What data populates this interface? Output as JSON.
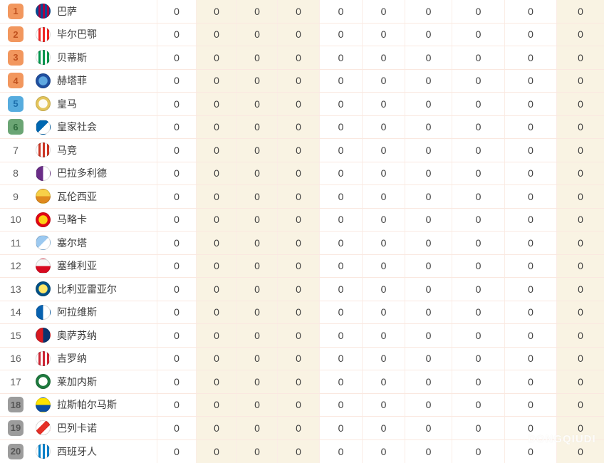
{
  "badge_styles": {
    "orange": {
      "bg": "#f2975e",
      "fg": "#c0511e"
    },
    "blue": {
      "bg": "#57acde",
      "fg": "#1d6fac"
    },
    "green": {
      "bg": "#6ba574",
      "fg": "#2f6c3d"
    },
    "gray": {
      "bg": "#9c9c9c",
      "fg": "#565656"
    },
    "plain": {
      "bg": "",
      "fg": "#5e5e5e"
    }
  },
  "colors": {
    "row_divider": "#fae8e0",
    "col_divider": "#fbede6",
    "beige_band": "#f9f3e3"
  },
  "beige_stat_columns": [
    1,
    2,
    3,
    9
  ],
  "watermark_text": "DONGQIUDI",
  "table": {
    "rows": [
      {
        "rank": "1",
        "badge": "orange",
        "team": "巴萨",
        "crest": {
          "type": "stripes",
          "colors": [
            "#004D98",
            "#A50044"
          ]
        },
        "stats": [
          "0",
          "0",
          "0",
          "0",
          "0",
          "0",
          "0",
          "0",
          "0",
          "0"
        ]
      },
      {
        "rank": "2",
        "badge": "orange",
        "team": "毕尔巴鄂",
        "crest": {
          "type": "stripes",
          "colors": [
            "#FFFFFF",
            "#EE2523"
          ]
        },
        "stats": [
          "0",
          "0",
          "0",
          "0",
          "0",
          "0",
          "0",
          "0",
          "0",
          "0"
        ]
      },
      {
        "rank": "3",
        "badge": "orange",
        "team": "贝蒂斯",
        "crest": {
          "type": "stripes",
          "colors": [
            "#FFFFFF",
            "#00954C"
          ]
        },
        "stats": [
          "0",
          "0",
          "0",
          "0",
          "0",
          "0",
          "0",
          "0",
          "0",
          "0"
        ]
      },
      {
        "rank": "4",
        "badge": "orange",
        "team": "赫塔菲",
        "crest": {
          "type": "ring",
          "colors": [
            "#1F4FA0",
            "#5FA8E0"
          ]
        },
        "stats": [
          "0",
          "0",
          "0",
          "0",
          "0",
          "0",
          "0",
          "0",
          "0",
          "0"
        ]
      },
      {
        "rank": "5",
        "badge": "blue",
        "team": "皇马",
        "crest": {
          "type": "ring",
          "colors": [
            "#E4C55A",
            "#FDFBF3"
          ]
        },
        "stats": [
          "0",
          "0",
          "0",
          "0",
          "0",
          "0",
          "0",
          "0",
          "0",
          "0"
        ]
      },
      {
        "rank": "6",
        "badge": "green",
        "team": "皇家社会",
        "crest": {
          "type": "diag",
          "colors": [
            "#0067B1",
            "#FFFFFF"
          ]
        },
        "stats": [
          "0",
          "0",
          "0",
          "0",
          "0",
          "0",
          "0",
          "0",
          "0",
          "0"
        ]
      },
      {
        "rank": "7",
        "badge": "plain",
        "team": "马竞",
        "crest": {
          "type": "stripes",
          "colors": [
            "#FFFFFF",
            "#CB3524"
          ]
        },
        "stats": [
          "0",
          "0",
          "0",
          "0",
          "0",
          "0",
          "0",
          "0",
          "0",
          "0"
        ]
      },
      {
        "rank": "8",
        "badge": "plain",
        "team": "巴拉多利德",
        "crest": {
          "type": "halfv",
          "colors": [
            "#6A2D87",
            "#FFFFFF"
          ]
        },
        "stats": [
          "0",
          "0",
          "0",
          "0",
          "0",
          "0",
          "0",
          "0",
          "0",
          "0"
        ]
      },
      {
        "rank": "9",
        "badge": "plain",
        "team": "瓦伦西亚",
        "crest": {
          "type": "halfh",
          "colors": [
            "#F7D048",
            "#E08A1E"
          ]
        },
        "stats": [
          "0",
          "0",
          "0",
          "0",
          "0",
          "0",
          "0",
          "0",
          "0",
          "0"
        ]
      },
      {
        "rank": "10",
        "badge": "plain",
        "team": "马略卡",
        "crest": {
          "type": "ring",
          "colors": [
            "#E20613",
            "#FCD116"
          ]
        },
        "stats": [
          "0",
          "0",
          "0",
          "0",
          "0",
          "0",
          "0",
          "0",
          "0",
          "0"
        ]
      },
      {
        "rank": "11",
        "badge": "plain",
        "team": "塞尔塔",
        "crest": {
          "type": "diag",
          "colors": [
            "#9CC9F0",
            "#FFFFFF"
          ]
        },
        "stats": [
          "0",
          "0",
          "0",
          "0",
          "0",
          "0",
          "0",
          "0",
          "0",
          "0"
        ]
      },
      {
        "rank": "12",
        "badge": "plain",
        "team": "塞维利亚",
        "crest": {
          "type": "halfh",
          "colors": [
            "#F6F6F6",
            "#D8091F"
          ]
        },
        "stats": [
          "0",
          "0",
          "0",
          "0",
          "0",
          "0",
          "0",
          "0",
          "0",
          "0"
        ]
      },
      {
        "rank": "13",
        "badge": "plain",
        "team": "比利亚雷亚尔",
        "crest": {
          "type": "ring",
          "colors": [
            "#005187",
            "#FFE667"
          ]
        },
        "stats": [
          "0",
          "0",
          "0",
          "0",
          "0",
          "0",
          "0",
          "0",
          "0",
          "0"
        ]
      },
      {
        "rank": "14",
        "badge": "plain",
        "team": "阿拉维斯",
        "crest": {
          "type": "halfv",
          "colors": [
            "#0761AF",
            "#FFFFFF"
          ]
        },
        "stats": [
          "0",
          "0",
          "0",
          "0",
          "0",
          "0",
          "0",
          "0",
          "0",
          "0"
        ]
      },
      {
        "rank": "15",
        "badge": "plain",
        "team": "奥萨苏纳",
        "crest": {
          "type": "halfv",
          "colors": [
            "#D91A21",
            "#0A346F"
          ]
        },
        "stats": [
          "0",
          "0",
          "0",
          "0",
          "0",
          "0",
          "0",
          "0",
          "0",
          "0"
        ]
      },
      {
        "rank": "16",
        "badge": "plain",
        "team": "吉罗纳",
        "crest": {
          "type": "stripes",
          "colors": [
            "#FFFFFF",
            "#CD2534"
          ]
        },
        "stats": [
          "0",
          "0",
          "0",
          "0",
          "0",
          "0",
          "0",
          "0",
          "0",
          "0"
        ]
      },
      {
        "rank": "17",
        "badge": "plain",
        "team": "莱加内斯",
        "crest": {
          "type": "ring",
          "colors": [
            "#1E7A3E",
            "#FFFFFF"
          ]
        },
        "stats": [
          "0",
          "0",
          "0",
          "0",
          "0",
          "0",
          "0",
          "0",
          "0",
          "0"
        ]
      },
      {
        "rank": "18",
        "badge": "gray",
        "team": "拉斯帕尔马斯",
        "crest": {
          "type": "halfh",
          "colors": [
            "#FFE400",
            "#0B4EA2"
          ]
        },
        "stats": [
          "0",
          "0",
          "0",
          "0",
          "0",
          "0",
          "0",
          "0",
          "0",
          "0"
        ]
      },
      {
        "rank": "19",
        "badge": "gray",
        "team": "巴列卡诺",
        "crest": {
          "type": "sash",
          "colors": [
            "#FFFFFF",
            "#E53027"
          ]
        },
        "stats": [
          "0",
          "0",
          "0",
          "0",
          "0",
          "0",
          "0",
          "0",
          "0",
          "0"
        ]
      },
      {
        "rank": "20",
        "badge": "gray",
        "team": "西班牙人",
        "crest": {
          "type": "stripes",
          "colors": [
            "#FFFFFF",
            "#007FC8"
          ]
        },
        "stats": [
          "0",
          "0",
          "0",
          "0",
          "0",
          "0",
          "0",
          "0",
          "0",
          "0"
        ]
      }
    ]
  }
}
